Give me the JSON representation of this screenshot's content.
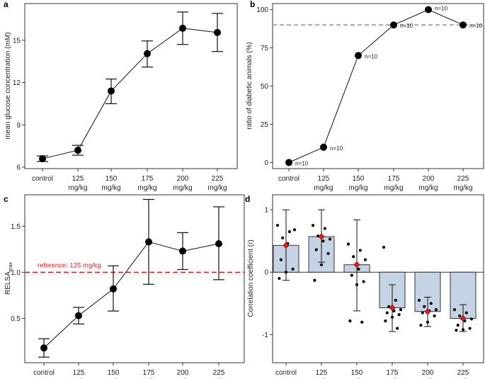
{
  "chart_data": [
    {
      "panel": "a",
      "type": "line",
      "categories": [
        "control",
        "125\nmg/kg",
        "150\nmg/kg",
        "175\nmg/kg",
        "200\nmg/kg",
        "225\nmg/kg"
      ],
      "values": [
        6.6,
        7.2,
        11.4,
        14.05,
        15.85,
        15.55
      ],
      "err_low": [
        6.4,
        6.85,
        10.5,
        13.1,
        14.7,
        14.2
      ],
      "err_high": [
        6.8,
        7.55,
        12.25,
        14.95,
        17.0,
        16.9
      ],
      "ylabel": "mean glucose concentration (mM)",
      "ylim": [
        5.9,
        17.6
      ],
      "yticks": [
        6,
        9,
        12,
        15
      ]
    },
    {
      "panel": "b",
      "type": "line",
      "categories": [
        "control",
        "125\nmg/kg",
        "150\nmg/kg",
        "175\nmg/kg",
        "200\nmg/kg",
        "225\nmg/kg"
      ],
      "values": [
        0,
        10,
        70,
        90,
        100,
        90
      ],
      "labels": [
        "n=10",
        "n=10",
        "n=10",
        "n=10",
        "n=10",
        "n=10"
      ],
      "ylabel": "ratio of diabetic animals (%)",
      "ylim": [
        -4,
        104
      ],
      "yticks": [
        0,
        25,
        50,
        75,
        100
      ],
      "reference_line": 90
    },
    {
      "panel": "c",
      "type": "line",
      "categories": [
        "control",
        "125\nmg/kg",
        "150\nmg/kg",
        "175\nmg/kg",
        "200\nmg/kg",
        "225\nmg/kg"
      ],
      "values": [
        0.18,
        0.53,
        0.82,
        1.33,
        1.23,
        1.31
      ],
      "err_low": [
        0.08,
        0.44,
        0.58,
        0.87,
        1.03,
        0.92
      ],
      "err_high": [
        0.28,
        0.62,
        1.07,
        1.79,
        1.43,
        1.71
      ],
      "ylabel_main": "RELSA",
      "ylabel_sub": "max",
      "ylim": [
        0.02,
        1.84
      ],
      "yticks": [
        0.5,
        1.0,
        1.5
      ],
      "ytick_labels": [
        "0.5",
        "1.0",
        "1.5"
      ],
      "reference_line": 1.0,
      "reference_label": "reference: 125 mg/kg"
    },
    {
      "panel": "d",
      "type": "bar",
      "categories": [
        "control",
        "125\nmg/kg",
        "150\nmg/kg",
        "175\nmg/kg",
        "200\nmg/kg",
        "225\nmg/kg"
      ],
      "values": [
        0.43,
        0.57,
        0.12,
        -0.57,
        -0.63,
        -0.74
      ],
      "means": [
        0.43,
        0.57,
        0.12,
        -0.57,
        -0.63,
        -0.74
      ],
      "err_low": [
        -0.13,
        0.16,
        -0.62,
        -0.95,
        -0.87,
        -0.95
      ],
      "err_high": [
        1.0,
        1.0,
        0.84,
        -0.2,
        -0.4,
        -0.52
      ],
      "points": [
        [
          0.75,
          0.65,
          0.55,
          0.68,
          0.46,
          0.2,
          0.05,
          0.0,
          -0.1
        ],
        [
          0.75,
          0.7,
          0.58,
          0.53,
          0.5,
          0.36,
          0.3,
          0.12,
          -0.13
        ],
        [
          0.45,
          0.35,
          0.25,
          0.2,
          0.05,
          -0.05,
          -0.15,
          -0.2,
          -0.78,
          -0.8
        ],
        [
          0.4,
          -0.45,
          -0.55,
          -0.6,
          -0.62,
          -0.65,
          -0.68,
          -0.72,
          -0.78,
          -0.9
        ],
        [
          -0.45,
          -0.5,
          -0.55,
          -0.6,
          -0.62,
          -0.65,
          -0.7,
          -0.8,
          -0.85
        ],
        [
          -0.6,
          -0.65,
          -0.7,
          -0.75,
          -0.78,
          -0.85,
          -0.9,
          -0.92,
          -0.93
        ]
      ],
      "ylabel": "Correlation coefficient (r)",
      "ylim": [
        -1.45,
        1.24
      ],
      "yticks": [
        -1,
        0,
        1
      ],
      "reference_line": 0,
      "bar_color": "#c5d4e4",
      "mean_color": "#e31a1c"
    }
  ],
  "colors": {
    "reference_red": "#e31a1c",
    "dash_gray": "#888888"
  }
}
